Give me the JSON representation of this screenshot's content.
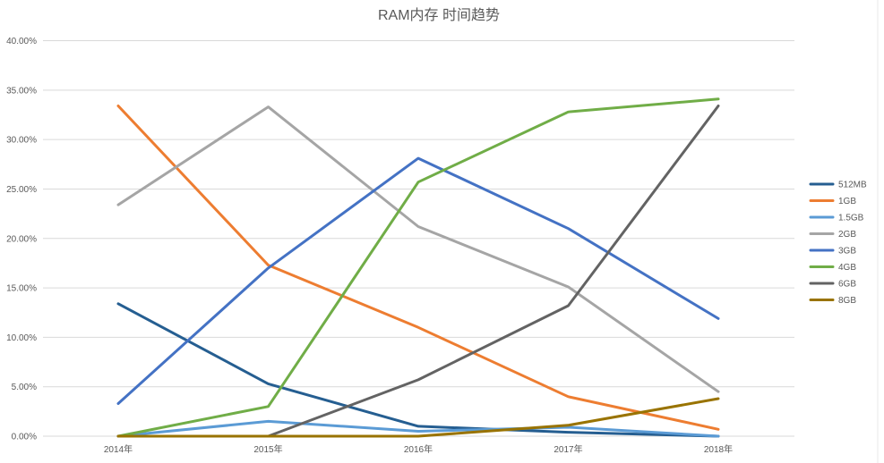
{
  "chart_data": {
    "type": "line",
    "title": "RAM内存 时间趋势",
    "xlabel": "",
    "ylabel": "",
    "categories": [
      "2014年",
      "2015年",
      "2016年",
      "2017年",
      "2018年"
    ],
    "ylim": [
      0,
      0.4
    ],
    "yticks": [
      "0.00%",
      "5.00%",
      "10.00%",
      "15.00%",
      "20.00%",
      "25.00%",
      "30.00%",
      "35.00%",
      "40.00%"
    ],
    "grid": true,
    "legend_position": "right",
    "series": [
      {
        "name": "512MB",
        "color": "#255e91",
        "values": [
          0.134,
          0.053,
          0.01,
          0.004,
          0.0
        ]
      },
      {
        "name": "1GB",
        "color": "#ed7d31",
        "values": [
          0.334,
          0.173,
          0.11,
          0.04,
          0.007
        ]
      },
      {
        "name": "1.5GB",
        "color": "#5b9bd5",
        "values": [
          0.0,
          0.015,
          0.005,
          0.009,
          0.0
        ]
      },
      {
        "name": "2GB",
        "color": "#a5a5a5",
        "values": [
          0.234,
          0.333,
          0.212,
          0.151,
          0.045
        ]
      },
      {
        "name": "3GB",
        "color": "#4472c4",
        "values": [
          0.033,
          0.17,
          0.281,
          0.21,
          0.119
        ]
      },
      {
        "name": "4GB",
        "color": "#70ad47",
        "values": [
          0.0,
          0.03,
          0.257,
          0.328,
          0.341
        ]
      },
      {
        "name": "6GB",
        "color": "#636363",
        "values": [
          0.0,
          0.0,
          0.057,
          0.132,
          0.334
        ]
      },
      {
        "name": "8GB",
        "color": "#997300",
        "values": [
          0.0,
          0.0,
          0.0,
          0.011,
          0.038
        ]
      }
    ]
  }
}
